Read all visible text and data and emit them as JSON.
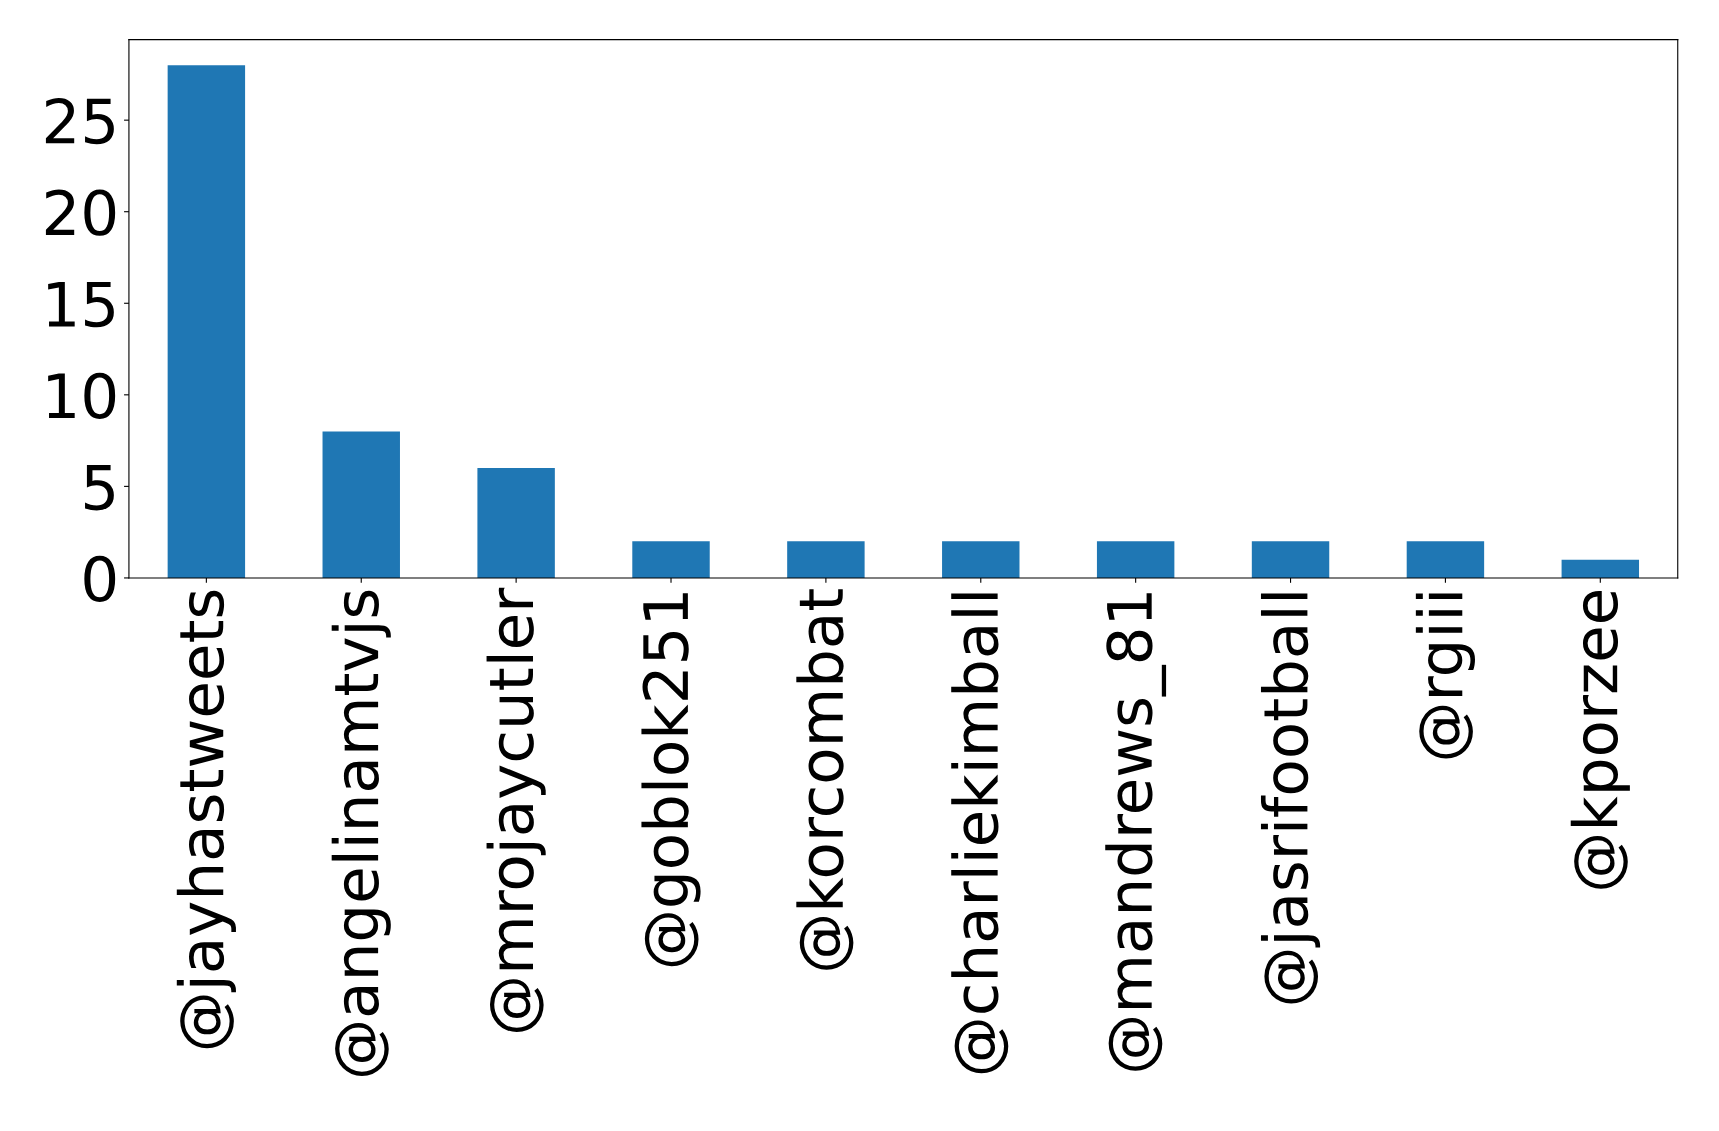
{
  "chart_data": {
    "type": "bar",
    "categories": [
      "@jayhastweets",
      "@angelinamtvjs",
      "@mrojaycutler",
      "@goblok251",
      "@korcombat",
      "@charliekimball",
      "@mandrews_81",
      "@jasrifootball",
      "@rgiii",
      "@kporzee"
    ],
    "values": [
      28,
      8,
      6,
      2,
      2,
      2,
      2,
      2,
      2,
      1
    ],
    "color": "#1f77b4",
    "ylim": [
      0,
      29.4
    ],
    "yticks": [
      0,
      5,
      10,
      15,
      20,
      25
    ],
    "grid": false
  }
}
